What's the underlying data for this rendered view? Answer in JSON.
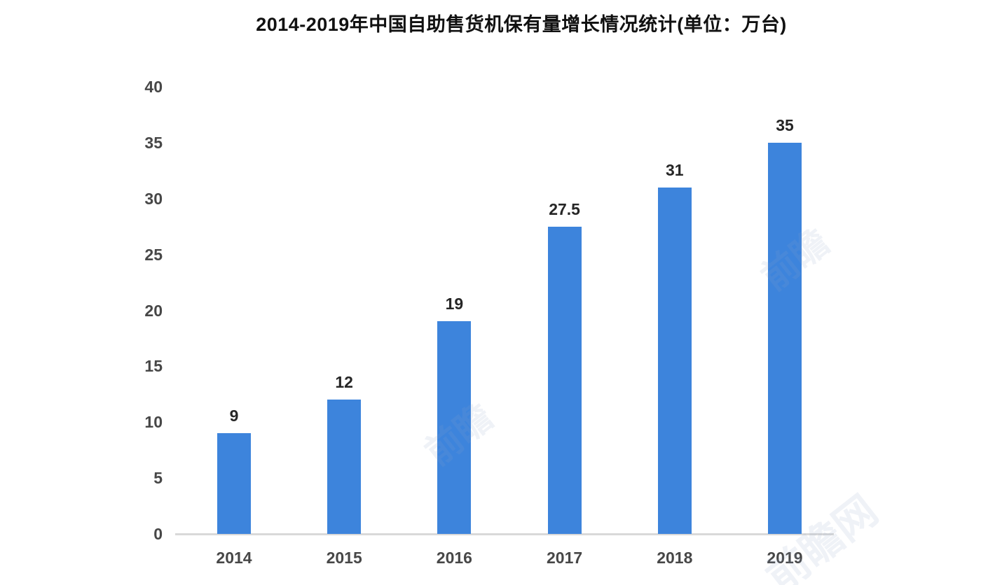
{
  "title": "2014-2019年中国自助售货机保有量增长情况统计(单位：万台)",
  "chart_data": {
    "type": "bar",
    "title": "2014-2019年中国自助售货机保有量增长情况统计(单位：万台)",
    "categories": [
      "2014",
      "2015",
      "2016",
      "2017",
      "2018",
      "2019"
    ],
    "values": [
      9,
      12,
      19,
      27.5,
      31,
      35
    ],
    "data_labels": [
      "9",
      "12",
      "19",
      "27.5",
      "31",
      "35"
    ],
    "xlabel": "",
    "ylabel": "",
    "unit": "万台",
    "ylim": [
      0,
      40
    ],
    "yticks": [
      0,
      5,
      10,
      15,
      20,
      25,
      30,
      35,
      40
    ],
    "grid": false,
    "legend": "none",
    "bar_color": "#3d84dc",
    "axis_line_color": "#d9d9d9",
    "tick_color": "#474747",
    "data_label_color": "#262626",
    "title_color": "#111111",
    "background_color": "#ffffff"
  },
  "watermarks": [
    {
      "text": "前瞻"
    },
    {
      "text": "前瞻"
    },
    {
      "text": "前瞻网"
    }
  ]
}
